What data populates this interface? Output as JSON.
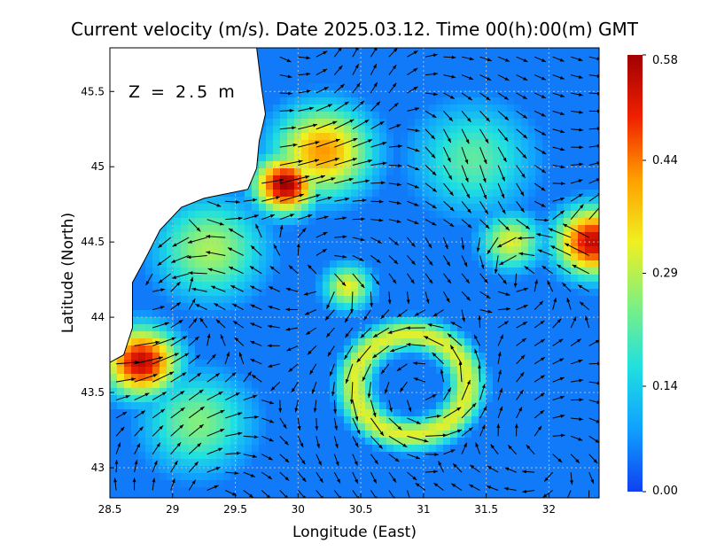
{
  "chart_data": {
    "type": "heatmap",
    "title": "Current velocity (m/s). Date 2025.03.12. Time 00(h):00(m) GMT",
    "xlabel": "Longitude (East)",
    "ylabel": "Latitude (North)",
    "annotation": "Z = 2.5 m",
    "xlim": [
      28.5,
      32.4
    ],
    "ylim": [
      42.8,
      45.79
    ],
    "xticks": [
      28.5,
      29,
      29.5,
      30,
      30.5,
      31,
      31.5,
      32
    ],
    "xtick_labels": [
      "28.5",
      "29",
      "29.5",
      "30",
      "30.5",
      "31",
      "31.5",
      "32"
    ],
    "yticks": [
      43,
      43.5,
      44,
      44.5,
      45,
      45.5
    ],
    "ytick_labels": [
      "43",
      "43.5",
      "44",
      "44.5",
      "45",
      "45.5"
    ],
    "grid": true,
    "colorbar": {
      "min": 0.0,
      "max": 0.58,
      "ticks": [
        0.58,
        0.44,
        0.29,
        0.14,
        0.0
      ],
      "tick_labels": [
        "0.58",
        "0.44",
        "0.29",
        "0.14",
        "0.00"
      ],
      "colors": [
        "#1040f0",
        "#10a0ff",
        "#20e0e0",
        "#80f080",
        "#f0f020",
        "#ffa000",
        "#f02000",
        "#a00000"
      ]
    },
    "speed_hotspots": [
      {
        "lon": 29.9,
        "lat": 44.88,
        "r": 0.25,
        "v": 0.58
      },
      {
        "lon": 30.2,
        "lat": 45.1,
        "r": 0.4,
        "v": 0.42
      },
      {
        "lon": 28.75,
        "lat": 43.7,
        "r": 0.3,
        "v": 0.55
      },
      {
        "lon": 32.35,
        "lat": 44.5,
        "r": 0.3,
        "v": 0.55
      },
      {
        "lon": 29.3,
        "lat": 44.45,
        "r": 0.45,
        "v": 0.28
      },
      {
        "lon": 31.4,
        "lat": 45.05,
        "r": 0.5,
        "v": 0.22
      },
      {
        "lon": 31.7,
        "lat": 44.5,
        "r": 0.25,
        "v": 0.32
      },
      {
        "lon": 30.4,
        "lat": 44.2,
        "r": 0.2,
        "v": 0.33
      },
      {
        "lon": 29.2,
        "lat": 43.3,
        "r": 0.45,
        "v": 0.25
      }
    ],
    "eddy": {
      "lon": 30.9,
      "lat": 43.55,
      "radius": 0.45,
      "v": 0.32
    },
    "coastline": [
      [
        29.67,
        45.79
      ],
      [
        29.71,
        45.52
      ],
      [
        29.74,
        45.35
      ],
      [
        29.69,
        45.17
      ],
      [
        29.67,
        44.99
      ],
      [
        29.6,
        44.85
      ],
      [
        29.25,
        44.79
      ],
      [
        29.07,
        44.73
      ],
      [
        28.9,
        44.58
      ],
      [
        28.79,
        44.4
      ],
      [
        28.68,
        44.23
      ],
      [
        28.68,
        43.93
      ],
      [
        28.61,
        43.75
      ],
      [
        28.5,
        43.7
      ]
    ]
  }
}
